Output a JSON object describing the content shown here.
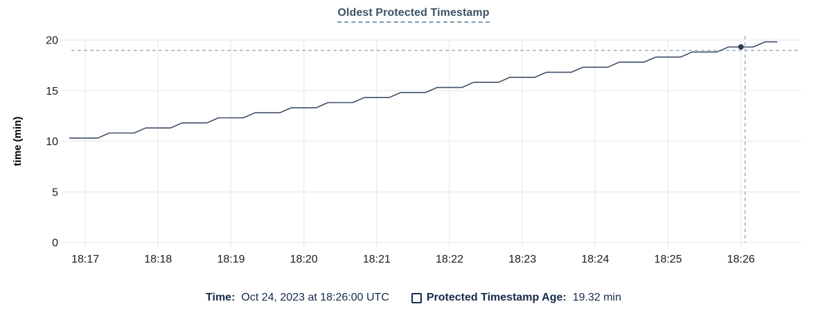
{
  "header": {
    "title": "Oldest Protected Timestamp"
  },
  "chart_data": {
    "type": "line",
    "title": "Oldest Protected Timestamp",
    "xlabel": "",
    "ylabel": "time (min)",
    "x_domain": [
      16.78,
      26.82
    ],
    "y_domain": [
      0,
      20
    ],
    "grid": true,
    "x_ticks": [
      {
        "label": "18:17",
        "value": 17
      },
      {
        "label": "18:18",
        "value": 18
      },
      {
        "label": "18:19",
        "value": 19
      },
      {
        "label": "18:20",
        "value": 20
      },
      {
        "label": "18:21",
        "value": 21
      },
      {
        "label": "18:22",
        "value": 22
      },
      {
        "label": "18:23",
        "value": 23
      },
      {
        "label": "18:24",
        "value": 24
      },
      {
        "label": "18:25",
        "value": 25
      },
      {
        "label": "18:26",
        "value": 26
      }
    ],
    "y_ticks": [
      {
        "label": "0",
        "value": 0
      },
      {
        "label": "5",
        "value": 5
      },
      {
        "label": "10",
        "value": 10
      },
      {
        "label": "15",
        "value": 15
      },
      {
        "label": "20",
        "value": 20
      }
    ],
    "series": [
      {
        "name": "Protected Timestamp Age",
        "unit": "min",
        "points": [
          [
            16.78,
            10.32
          ],
          [
            17.17,
            10.32
          ],
          [
            17.33,
            10.82
          ],
          [
            17.67,
            10.82
          ],
          [
            17.83,
            11.32
          ],
          [
            18.17,
            11.32
          ],
          [
            18.33,
            11.82
          ],
          [
            18.67,
            11.82
          ],
          [
            18.83,
            12.32
          ],
          [
            19.17,
            12.32
          ],
          [
            19.33,
            12.82
          ],
          [
            19.67,
            12.82
          ],
          [
            19.83,
            13.32
          ],
          [
            20.17,
            13.32
          ],
          [
            20.33,
            13.82
          ],
          [
            20.67,
            13.82
          ],
          [
            20.83,
            14.32
          ],
          [
            21.17,
            14.32
          ],
          [
            21.33,
            14.82
          ],
          [
            21.67,
            14.82
          ],
          [
            21.83,
            15.32
          ],
          [
            22.17,
            15.32
          ],
          [
            22.33,
            15.82
          ],
          [
            22.67,
            15.82
          ],
          [
            22.83,
            16.32
          ],
          [
            23.17,
            16.32
          ],
          [
            23.33,
            16.82
          ],
          [
            23.67,
            16.82
          ],
          [
            23.83,
            17.32
          ],
          [
            24.17,
            17.32
          ],
          [
            24.33,
            17.82
          ],
          [
            24.67,
            17.82
          ],
          [
            24.83,
            18.32
          ],
          [
            25.17,
            18.32
          ],
          [
            25.33,
            18.82
          ],
          [
            25.67,
            18.82
          ],
          [
            25.83,
            19.32
          ],
          [
            26.17,
            19.32
          ],
          [
            26.33,
            19.82
          ],
          [
            26.5,
            19.82
          ]
        ]
      }
    ],
    "crosshair": {
      "t": 26.0,
      "value": 19.32
    },
    "legend_position": "bottom"
  },
  "legend": {
    "time_label": "Time:",
    "time_value": "Oct 24, 2023 at 18:26:00 UTC",
    "series_label": "Protected Timestamp Age:",
    "series_value": "19.32 min"
  },
  "colors": {
    "line": "#3e4e66",
    "dot": "#2b3d57",
    "grid": "#ebedef",
    "crosshair": "#9db1c0",
    "tick_text": "#1b1b1b",
    "title_text": "#3c5168",
    "legend_text": "#16294b"
  }
}
